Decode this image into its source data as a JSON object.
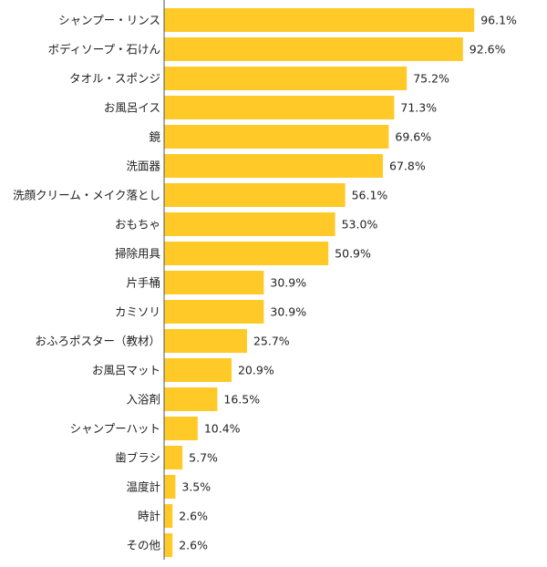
{
  "chart_data": {
    "type": "bar",
    "orientation": "horizontal",
    "categories": [
      "シャンプー・リンス",
      "ボディソープ・石けん",
      "タオル・スポンジ",
      "お風呂イス",
      "鏡",
      "洗面器",
      "洗顔クリーム・メイク落とし",
      "おもちゃ",
      "掃除用具",
      "片手桶",
      "カミソリ",
      "おふろポスター（教材）",
      "お風呂マット",
      "入浴剤",
      "シャンプーハット",
      "歯ブラシ",
      "温度計",
      "時計",
      "その他"
    ],
    "values": [
      96.1,
      92.6,
      75.2,
      71.3,
      69.6,
      67.8,
      56.1,
      53.0,
      50.9,
      30.9,
      30.9,
      25.7,
      20.9,
      16.5,
      10.4,
      5.7,
      3.5,
      2.6,
      2.6
    ],
    "value_labels": [
      "96.1%",
      "92.6%",
      "75.2%",
      "71.3%",
      "69.6%",
      "67.8%",
      "56.1%",
      "53.0%",
      "50.9%",
      "30.9%",
      "30.9%",
      "25.7%",
      "20.9%",
      "16.5%",
      "10.4%",
      "5.7%",
      "3.5%",
      "2.6%",
      "2.6%"
    ],
    "xlim": [
      0,
      100
    ],
    "grid": false,
    "bar_color": "#FFC928",
    "axis_color": "#555555"
  }
}
